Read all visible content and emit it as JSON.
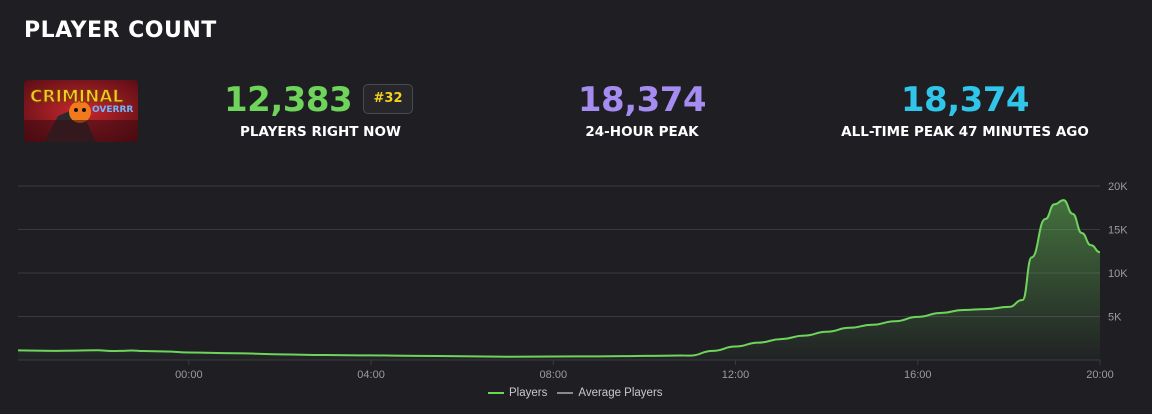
{
  "header": {
    "title": "PLAYER COUNT"
  },
  "game": {
    "thumbnail_text_top": "CRIMINAL",
    "thumbnail_text_bottom": "OVERRR"
  },
  "stats": {
    "current": {
      "value": "12,383",
      "label": "PLAYERS RIGHT NOW",
      "rank": "#32",
      "color": "#6fd45c"
    },
    "peak_24h": {
      "value": "18,374",
      "label": "24-HOUR PEAK",
      "color": "#a48cf0"
    },
    "all_time": {
      "value": "18,374",
      "label": "ALL-TIME PEAK 47 MINUTES AGO",
      "color": "#2fc6ea"
    }
  },
  "legend": {
    "players": "Players",
    "average": "Average Players"
  },
  "colors": {
    "players_line": "#6fd45c",
    "average_line": "#8a8a8e",
    "grid": "#3a3a40",
    "axis_text": "#9a9aa0"
  },
  "chart_data": {
    "type": "area",
    "x_ticks": [
      "00:00",
      "04:00",
      "08:00",
      "12:00",
      "16:00",
      "20:00"
    ],
    "y_ticks": [
      "5K",
      "10K",
      "15K",
      "20K"
    ],
    "ylim": [
      0,
      20000
    ],
    "xlim_hours": [
      -3.75,
      20
    ],
    "grid": true,
    "legend_position": "bottom-center",
    "series": [
      {
        "name": "Players",
        "x_hours": [
          -3.75,
          -3,
          -2.5,
          -2,
          -1.7,
          -1.5,
          -1.25,
          -1,
          -0.5,
          0,
          1,
          2,
          3,
          4,
          5,
          6,
          7,
          8,
          9,
          10,
          10.8,
          11,
          11.5,
          12,
          12.5,
          13,
          13.5,
          14,
          14.5,
          15,
          15.5,
          16,
          16.5,
          17,
          17.5,
          18,
          18.3,
          18.5,
          18.8,
          19,
          19.2,
          19.4,
          19.6,
          19.8,
          20
        ],
        "values": [
          1100,
          1050,
          1080,
          1120,
          1030,
          1050,
          1090,
          1030,
          980,
          860,
          780,
          650,
          570,
          530,
          480,
          430,
          380,
          400,
          420,
          470,
          520,
          500,
          1050,
          1550,
          2000,
          2400,
          2800,
          3250,
          3700,
          4050,
          4450,
          4950,
          5400,
          5750,
          5850,
          6100,
          6900,
          11800,
          16200,
          17900,
          18374,
          16800,
          14600,
          13200,
          12383
        ]
      }
    ]
  }
}
